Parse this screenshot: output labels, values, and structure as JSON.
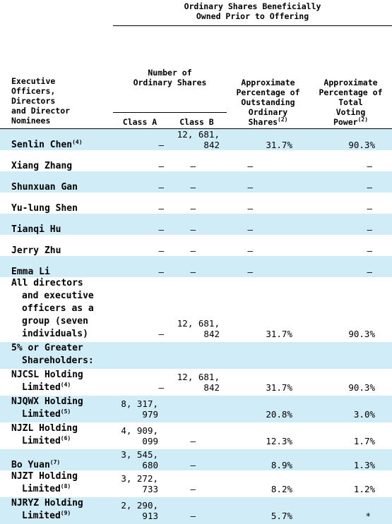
{
  "header": {
    "group_title": "Ordinary Shares Beneficially Owned Prior to Offering",
    "group_title_lines": [
      "Ordinary Shares Beneficially",
      "Owned Prior to Offering"
    ],
    "name_col_lines": [
      "Executive",
      "Officers,",
      "Directors",
      "and Director",
      "Nominees"
    ],
    "number_col_lines": [
      "Number of",
      "Ordinary Shares"
    ],
    "class_a": "Class  A",
    "class_b": "Class  B",
    "pct_outstanding_lines": [
      "Approximate",
      "Percentage  of",
      "Outstanding",
      "Ordinary",
      "Shares"
    ],
    "pct_outstanding_note": "(2)",
    "pct_voting_lines": [
      "Approximate",
      "Percentage  of",
      "Total",
      "Voting",
      "Power"
    ],
    "pct_voting_note": "(2)"
  },
  "rows": [
    {
      "name": "Senlin Chen",
      "note": "(4)",
      "class_a": "—",
      "class_b": "12, 681, 842",
      "pct_out": "31.7%",
      "pct_vote": "90.3%"
    },
    {
      "name": "Xiang Zhang",
      "class_a": "—",
      "class_b": "—",
      "pct_out": "—",
      "pct_vote": "—"
    },
    {
      "name": "Shunxuan Gan",
      "class_a": "—",
      "class_b": "—",
      "pct_out": "—",
      "pct_vote": "—"
    },
    {
      "name": "Yu-lung Shen",
      "class_a": "—",
      "class_b": "—",
      "pct_out": "—",
      "pct_vote": "—"
    },
    {
      "name": "Tianqi Hu",
      "class_a": "—",
      "class_b": "—",
      "pct_out": "—",
      "pct_vote": "—"
    },
    {
      "name": "Jerry Zhu",
      "class_a": "—",
      "class_b": "—",
      "pct_out": "—",
      "pct_vote": "—"
    },
    {
      "name": "Emma Li",
      "class_a": "—",
      "class_b": "—",
      "pct_out": "—",
      "pct_vote": "—"
    }
  ],
  "group_row": {
    "lines": [
      "All directors",
      "and executive",
      "officers as a",
      "group (seven",
      "individuals)"
    ],
    "class_a": "—",
    "class_b": "12, 681, 842",
    "pct_out": "31.7%",
    "pct_vote": "90.3%"
  },
  "section_label_lines": [
    "5% or Greater",
    "Shareholders:"
  ],
  "holders": [
    {
      "line1": "NJCSL Holding",
      "line2": "Limited",
      "note": "(4)",
      "class_a": "—",
      "class_b": "12, 681, 842",
      "pct_out": "31.7%",
      "pct_vote": "90.3%"
    },
    {
      "line1": "NJQWX Holding",
      "line2": "Limited",
      "note": "(5)",
      "class_a": "8, 317, 979",
      "class_b": "",
      "pct_out": "20.8%",
      "pct_vote": "3.0%"
    },
    {
      "line1": "NJZL Holding",
      "line2": "Limited",
      "note": "(6)",
      "class_a": "4, 909, 099",
      "class_b": "—",
      "pct_out": "12.3%",
      "pct_vote": "1.7%"
    },
    {
      "line1": "Bo Yuan",
      "line2": "",
      "note": "(7)",
      "class_a": "3, 545, 680",
      "class_b": "—",
      "pct_out": "8.9%",
      "pct_vote": "1.3%"
    },
    {
      "line1": "NJZT Holding",
      "line2": "Limited",
      "note": "(8)",
      "class_a": "3, 272, 733",
      "class_b": "—",
      "pct_out": "8.2%",
      "pct_vote": "1.2%"
    },
    {
      "line1": "NJRYZ Holding",
      "line2": "Limited",
      "note": "(9)",
      "class_a": "2, 290, 913",
      "class_b": "—",
      "pct_out": "5.7%",
      "pct_vote": "*"
    }
  ]
}
